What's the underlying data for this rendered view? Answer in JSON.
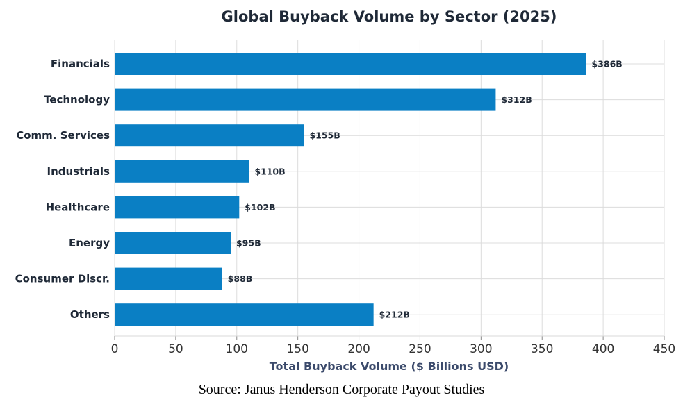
{
  "chart_data": {
    "type": "bar",
    "orientation": "horizontal",
    "title": "Global Buyback Volume by Sector (2025)",
    "xlabel": "Total Buyback Volume ($ Billions USD)",
    "ylabel": "",
    "categories": [
      "Financials",
      "Technology",
      "Comm. Services",
      "Industrials",
      "Healthcare",
      "Energy",
      "Consumer Discr.",
      "Others"
    ],
    "values": [
      386,
      312,
      155,
      110,
      102,
      95,
      88,
      212
    ],
    "value_labels": [
      "$386B",
      "$312B",
      "$155B",
      "$110B",
      "$102B",
      "$95B",
      "$88B",
      "$212B"
    ],
    "xlim": [
      0,
      450
    ],
    "xticks": [
      0,
      50,
      100,
      150,
      200,
      250,
      300,
      350,
      400,
      450
    ],
    "grid": true,
    "bar_color": "#0a7fc4"
  },
  "source": "Source: Janus Henderson Corporate Payout Studies"
}
